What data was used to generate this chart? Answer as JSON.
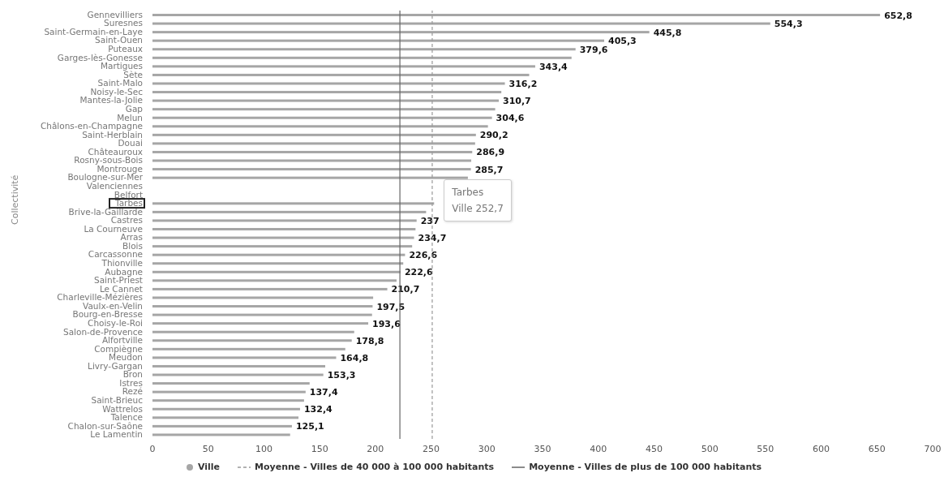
{
  "chart_data": {
    "type": "bar",
    "orientation": "horizontal",
    "ylabel": "Collectivité",
    "categories": [
      "Gennevilliers",
      "Suresnes",
      "Saint-Germain-en-Laye",
      "Saint-Ouen",
      "Puteaux",
      "Garges-lès-Gonesse",
      "Martigues",
      "Sète",
      "Saint-Malo",
      "Noisy-le-Sec",
      "Mantes-la-Jolie",
      "Gap",
      "Melun",
      "Châlons-en-Champagne",
      "Saint-Herblain",
      "Douai",
      "Châteauroux",
      "Rosny-sous-Bois",
      "Montrouge",
      "Boulogne-sur-Mer",
      "Valenciennes",
      "Belfort",
      "Tarbes",
      "Brive-la-Gaillarde",
      "Castres",
      "La Courneuve",
      "Arras",
      "Blois",
      "Carcassonne",
      "Thionville",
      "Aubagne",
      "Saint-Priest",
      "Le Cannet",
      "Charleville-Mézières",
      "Vaulx-en-Velin",
      "Bourg-en-Bresse",
      "Choisy-le-Roi",
      "Salon-de-Provence",
      "Alfortville",
      "Compiègne",
      "Meudon",
      "Livry-Gargan",
      "Bron",
      "Istres",
      "Rezé",
      "Saint-Brieuc",
      "Wattrelos",
      "Talence",
      "Chalon-sur-Saône",
      "Le Lamentin"
    ],
    "series": [
      {
        "name": "Ville",
        "color": "#a6a6a6",
        "values": [
          652.8,
          554.3,
          445.8,
          405.3,
          379.6,
          376,
          343.4,
          338,
          316.2,
          313,
          310.7,
          307.5,
          304.6,
          301,
          290.2,
          289.5,
          286.9,
          286,
          285.7,
          283,
          null,
          null,
          252.7,
          245.5,
          237,
          236,
          234.7,
          233,
          226.6,
          225,
          222.6,
          219,
          210.7,
          198,
          197.5,
          197,
          193.6,
          181,
          178.8,
          173,
          164.8,
          155,
          153.3,
          141,
          137.4,
          136,
          132.4,
          131,
          125.1,
          123.5
        ],
        "value_labels": [
          "652,8",
          "554,3",
          "445,8",
          "405,3",
          "379,6",
          null,
          "343,4",
          null,
          "316,2",
          null,
          "310,7",
          null,
          "304,6",
          null,
          "290,2",
          null,
          "286,9",
          null,
          "285,7",
          null,
          null,
          null,
          null,
          null,
          "237",
          null,
          "234,7",
          null,
          "226,6",
          null,
          "222,6",
          null,
          "210,7",
          null,
          "197,5",
          null,
          "193,6",
          null,
          "178,8",
          null,
          "164,8",
          null,
          "153,3",
          null,
          "137,4",
          null,
          "132,4",
          null,
          "125,1",
          null
        ]
      }
    ],
    "xlim": [
      0,
      700
    ],
    "xticks": [
      0,
      50,
      100,
      150,
      200,
      250,
      300,
      350,
      400,
      450,
      500,
      550,
      600,
      650,
      700
    ],
    "ref_lines": [
      {
        "axis": "x",
        "value": 251,
        "label": "Moyenne - Villes de 40 000 à 100 000 habitants",
        "color": "#999999",
        "line_style": "dashed"
      },
      {
        "axis": "x",
        "value": 222,
        "label": "Moyenne - Villes de plus de 100 000 habitants",
        "color": "#666666",
        "line_style": "solid"
      }
    ],
    "annotations": [
      {
        "text": "Tarbes\nVille 252,7",
        "x": 252.7,
        "y": "Tarbes"
      }
    ],
    "legend": "bottom",
    "marker": "circle"
  }
}
